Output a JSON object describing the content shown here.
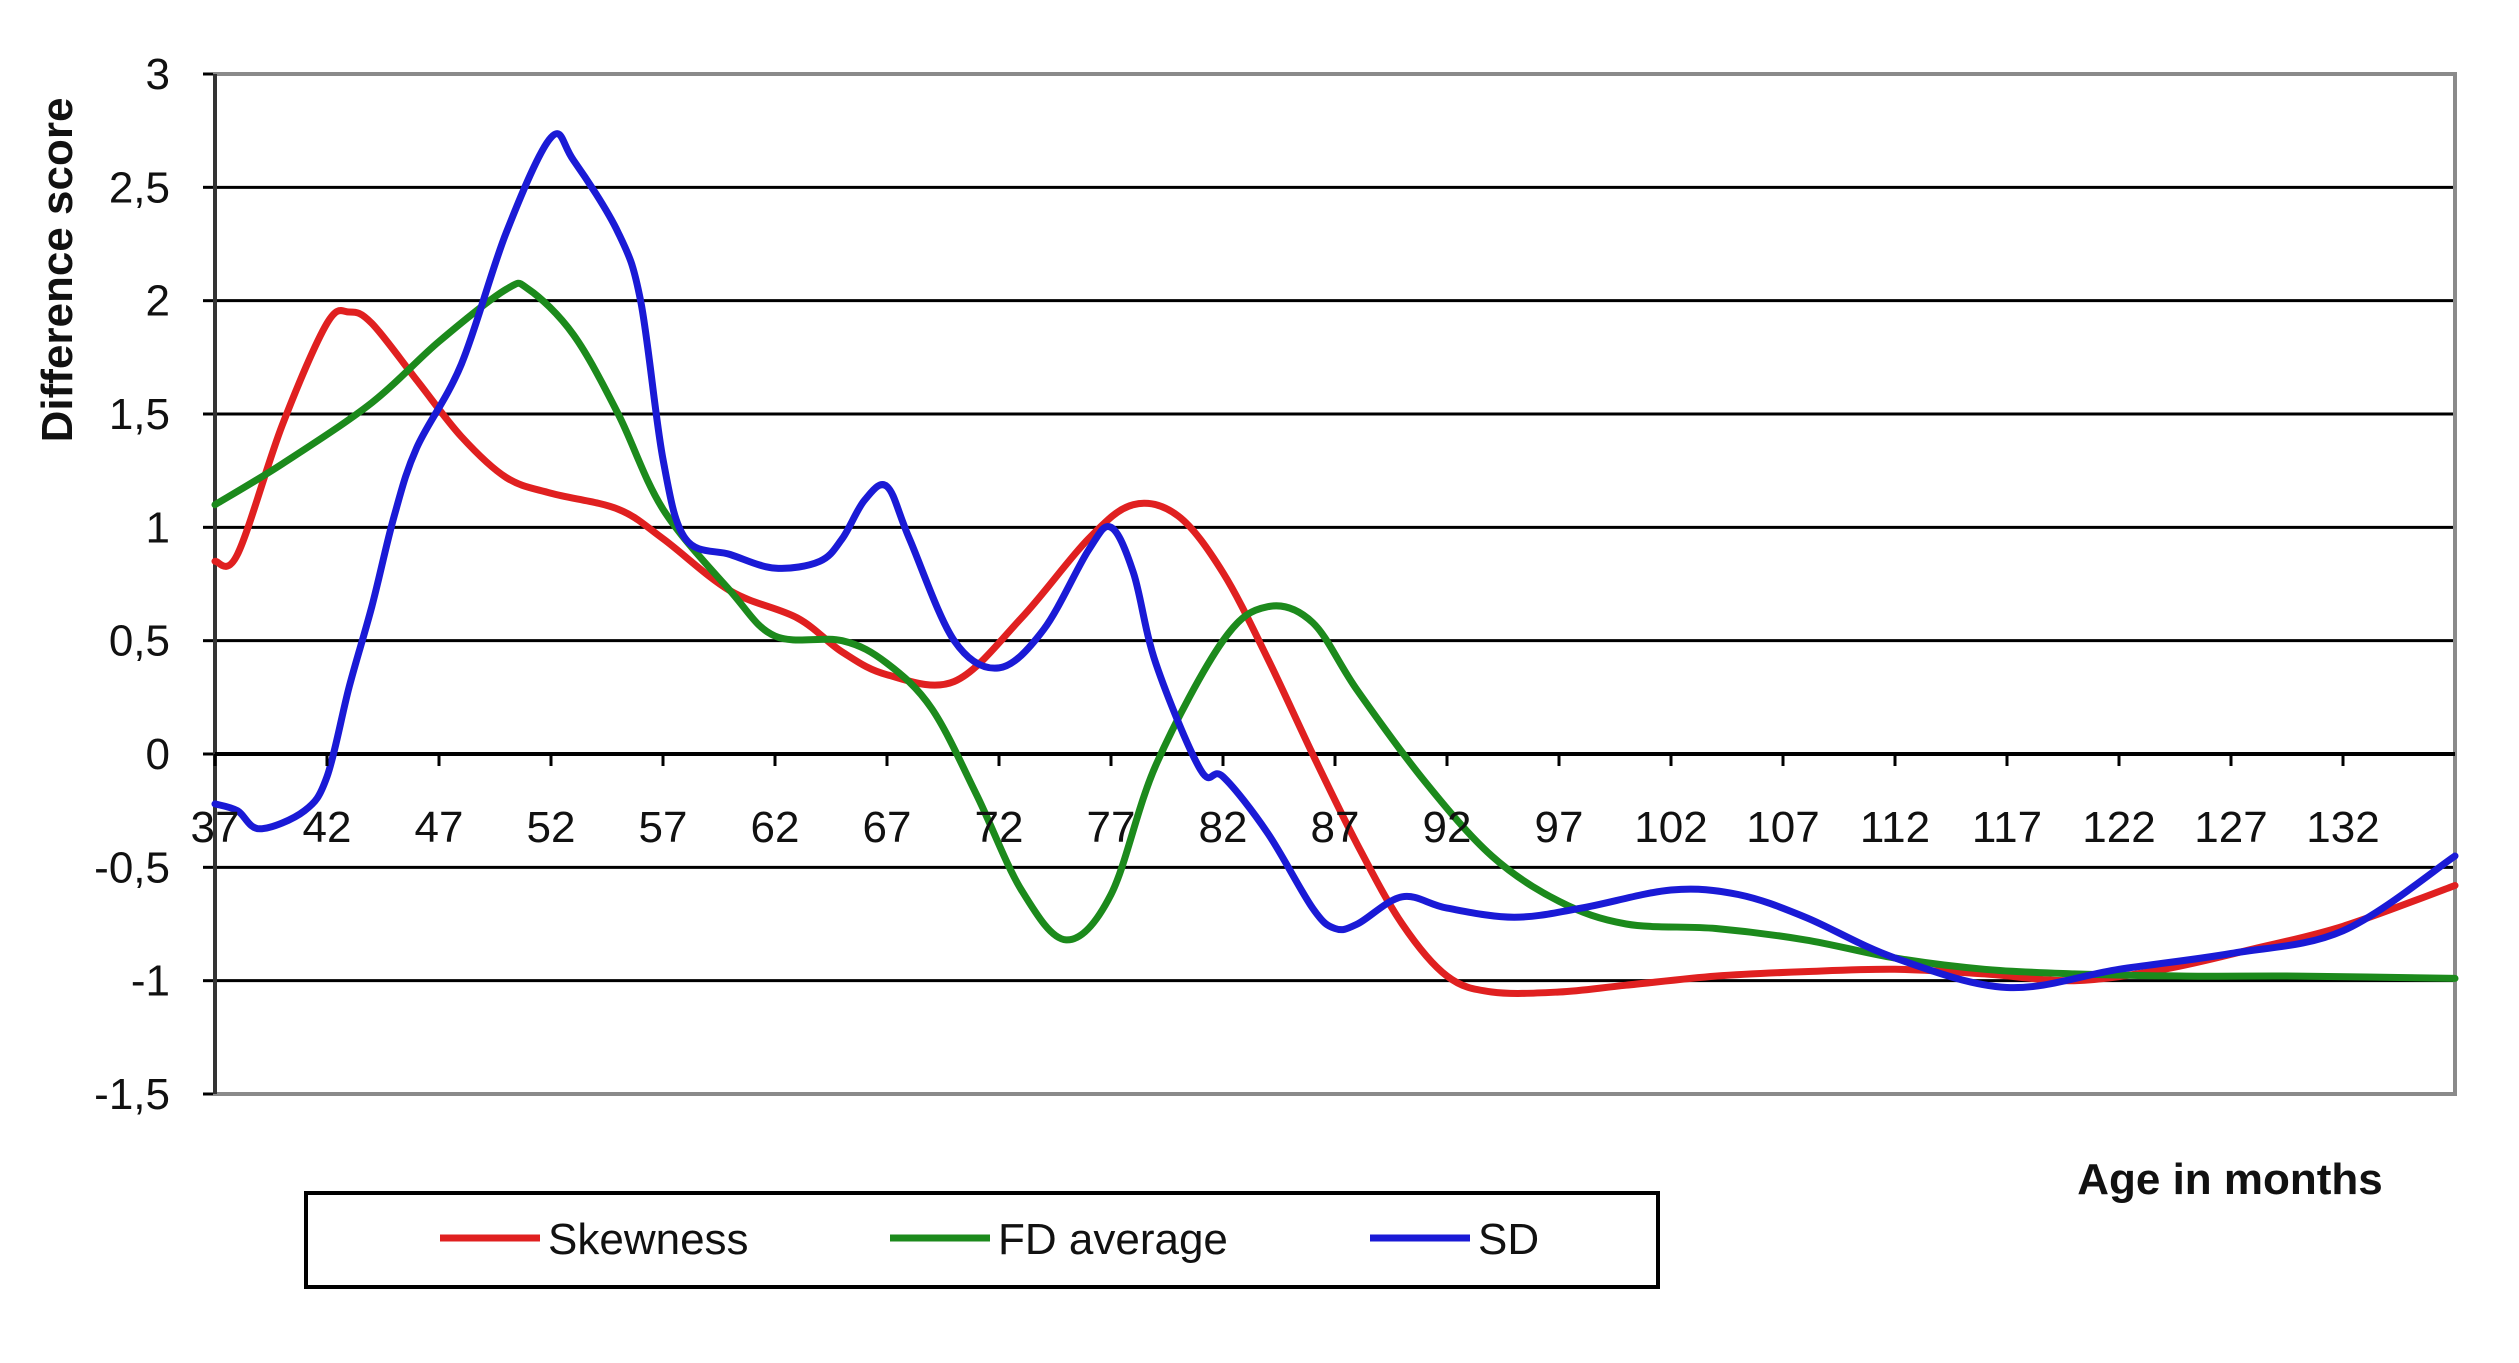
{
  "chart_data": {
    "type": "line",
    "title": "",
    "xlabel": "Age in months",
    "ylabel": "Difference score",
    "xlim": [
      37,
      137
    ],
    "ylim": [
      -1.5,
      3
    ],
    "grid": true,
    "legend_position": "bottom",
    "x_ticks": [
      "37",
      "42",
      "47",
      "52",
      "57",
      "62",
      "67",
      "72",
      "77",
      "82",
      "87",
      "92",
      "97",
      "102",
      "107",
      "112",
      "117",
      "122",
      "127",
      "132"
    ],
    "y_ticks": [
      "3",
      "2,5",
      "2",
      "1,5",
      "1",
      "0,5",
      "0",
      "-0,5",
      "-1",
      "-1,5"
    ],
    "series": [
      {
        "name": "Skewness",
        "color": "#e02020",
        "x": [
          37,
          38,
          40,
          42,
          43,
          44,
          46,
          48,
          50,
          52,
          55,
          57,
          60,
          63,
          65,
          67,
          70,
          73,
          76,
          78,
          80,
          82,
          84,
          86,
          88,
          90,
          92,
          94,
          97,
          100,
          104,
          108,
          112,
          116,
          120,
          124,
          128,
          132,
          137
        ],
        "y": [
          0.85,
          0.88,
          1.45,
          1.9,
          1.95,
          1.9,
          1.65,
          1.4,
          1.22,
          1.15,
          1.08,
          0.95,
          0.72,
          0.6,
          0.45,
          0.35,
          0.32,
          0.6,
          0.95,
          1.1,
          1.05,
          0.8,
          0.42,
          0.0,
          -0.4,
          -0.75,
          -0.98,
          -1.05,
          -1.05,
          -1.02,
          -0.98,
          -0.96,
          -0.95,
          -0.97,
          -1.0,
          -0.95,
          -0.86,
          -0.76,
          -0.58
        ]
      },
      {
        "name": "FD average",
        "color": "#1c8a1c",
        "x": [
          37,
          40,
          44,
          47,
          50,
          51,
          53,
          55,
          57,
          60,
          62,
          65,
          67,
          69,
          71,
          73,
          75,
          77,
          79,
          82,
          84,
          86,
          88,
          91,
          94,
          97,
          100,
          104,
          108,
          112,
          116,
          120,
          125,
          130,
          137
        ],
        "y": [
          1.1,
          1.28,
          1.55,
          1.82,
          2.05,
          2.05,
          1.85,
          1.5,
          1.08,
          0.72,
          0.52,
          0.5,
          0.4,
          0.2,
          -0.18,
          -0.6,
          -0.82,
          -0.62,
          -0.05,
          0.5,
          0.65,
          0.58,
          0.28,
          -0.12,
          -0.45,
          -0.65,
          -0.75,
          -0.77,
          -0.82,
          -0.9,
          -0.95,
          -0.97,
          -0.98,
          -0.98,
          -0.99
        ]
      },
      {
        "name": "SD",
        "color": "#1a1ad6",
        "x": [
          37,
          38,
          39,
          41,
          42,
          43,
          44,
          45,
          46,
          48,
          50,
          52,
          53,
          55,
          56,
          57,
          58,
          60,
          62,
          64,
          65,
          66,
          67,
          68,
          70,
          72,
          74,
          76,
          77,
          78,
          79,
          81,
          82,
          84,
          86,
          87,
          88,
          90,
          92,
          95,
          98,
          102,
          105,
          108,
          112,
          117,
          122,
          127,
          132,
          137
        ],
        "y": [
          -0.22,
          -0.25,
          -0.33,
          -0.25,
          -0.1,
          0.3,
          0.65,
          1.05,
          1.35,
          1.72,
          2.3,
          2.72,
          2.62,
          2.3,
          2.0,
          1.3,
          0.95,
          0.88,
          0.82,
          0.85,
          0.95,
          1.12,
          1.18,
          0.95,
          0.5,
          0.38,
          0.55,
          0.9,
          1.0,
          0.8,
          0.4,
          -0.07,
          -0.1,
          -0.35,
          -0.68,
          -0.77,
          -0.75,
          -0.63,
          -0.68,
          -0.72,
          -0.68,
          -0.6,
          -0.62,
          -0.72,
          -0.9,
          -1.03,
          -0.95,
          -0.88,
          -0.78,
          -0.45
        ]
      }
    ]
  }
}
